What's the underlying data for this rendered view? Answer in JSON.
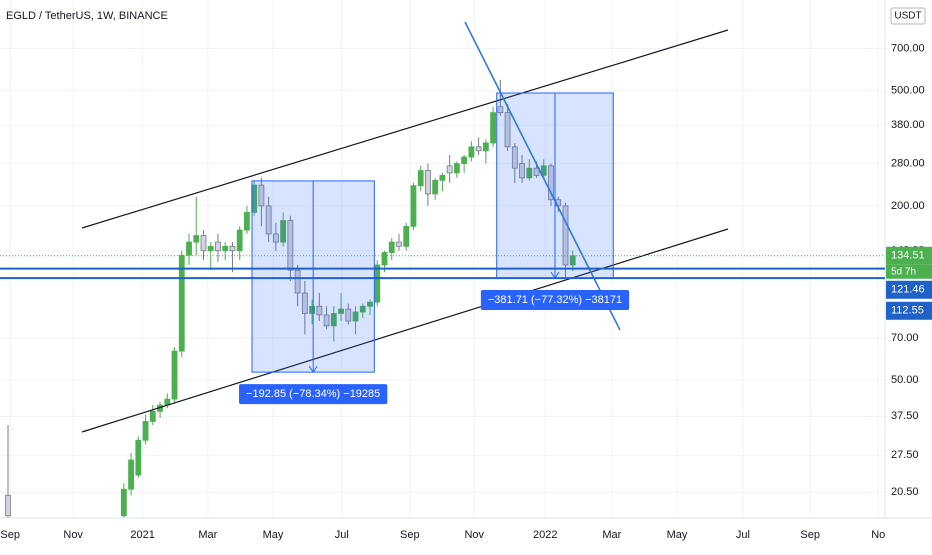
{
  "chart_data": {
    "type": "candlestick",
    "title": "EGLD / TetherUS, 1W, BINANCE",
    "y_axis_label": "USDT",
    "log_scale": true,
    "grid": true,
    "up_color": "#4caf50",
    "down_color": "#d1d4dc",
    "xlim": [
      -1.105,
      121.13
    ],
    "ylim": [
      16.7,
      1029
    ],
    "xticks": [
      {
        "value": 0.3,
        "label": "Sep"
      },
      {
        "value": 9.0,
        "label": "Nov"
      },
      {
        "value": 18.6,
        "label": "2021"
      },
      {
        "value": 27.6,
        "label": "Mar"
      },
      {
        "value": 36.6,
        "label": "May"
      },
      {
        "value": 46.1,
        "label": "Jul"
      },
      {
        "value": 55.5,
        "label": "Sep"
      },
      {
        "value": 64.4,
        "label": "Nov"
      },
      {
        "value": 74.2,
        "label": "2022"
      },
      {
        "value": 83.4,
        "label": "Mar"
      },
      {
        "value": 92.4,
        "label": "May"
      },
      {
        "value": 101.5,
        "label": "Jul"
      },
      {
        "value": 110.8,
        "label": "Sep"
      },
      {
        "value": 120.2,
        "label": "No"
      }
    ],
    "yticks": [
      {
        "value": 20.5,
        "label": "20.50"
      },
      {
        "value": 27.5,
        "label": "27.50"
      },
      {
        "value": 37.5,
        "label": "37.50"
      },
      {
        "value": 50,
        "label": "50.00"
      },
      {
        "value": 70,
        "label": "70.00"
      },
      {
        "value": 140,
        "label": "140.00"
      },
      {
        "value": 200,
        "label": "200.00"
      },
      {
        "value": 280,
        "label": "280.00"
      },
      {
        "value": 380,
        "label": "380.00"
      },
      {
        "value": 500,
        "label": "500.00"
      },
      {
        "value": 700,
        "label": "700.00"
      }
    ],
    "x": [
      0,
      16,
      17,
      18,
      19,
      20,
      21,
      22,
      23,
      24,
      25,
      26,
      27,
      28,
      29,
      30,
      31,
      32,
      33,
      34,
      35,
      36,
      37,
      38,
      39,
      40,
      41,
      42,
      43,
      44,
      45,
      46,
      47,
      48,
      49,
      50,
      51,
      52,
      53,
      54,
      55,
      56,
      57,
      58,
      59,
      60,
      61,
      62,
      63,
      64,
      65,
      66,
      67,
      68,
      69,
      70,
      71,
      72,
      73,
      74,
      75,
      76,
      77,
      78
    ],
    "open": [
      20,
      17,
      21,
      23.5,
      31,
      36,
      39,
      41,
      43,
      63,
      135,
      150,
      158,
      140,
      150,
      140,
      145,
      140,
      165,
      190,
      236,
      200,
      160,
      150,
      178,
      120,
      100,
      85,
      90,
      84,
      77,
      85,
      88,
      80,
      86,
      90,
      93,
      125,
      138,
      150,
      145,
      170,
      235,
      265,
      220,
      245,
      275,
      260,
      280,
      295,
      320,
      310,
      330,
      440,
      420,
      320,
      280,
      250,
      270,
      255,
      275,
      210,
      200,
      125
    ],
    "high": [
      35,
      22,
      28,
      32,
      38,
      41,
      42,
      45,
      65,
      140,
      160,
      215,
      165,
      150,
      160,
      150,
      150,
      170,
      200,
      245,
      250,
      215,
      175,
      190,
      185,
      125,
      110,
      95,
      100,
      90,
      90,
      100,
      92,
      90,
      92,
      95,
      130,
      140,
      155,
      160,
      175,
      240,
      275,
      280,
      250,
      260,
      300,
      285,
      300,
      335,
      345,
      340,
      440,
      545,
      450,
      330,
      300,
      290,
      285,
      290,
      280,
      215,
      205,
      140
    ],
    "low": [
      16.7,
      16.7,
      20,
      23,
      30,
      35,
      37,
      40,
      42,
      60,
      125,
      135,
      130,
      120,
      128,
      130,
      118,
      130,
      160,
      185,
      170,
      150,
      140,
      145,
      110,
      90,
      72,
      78,
      80,
      75,
      68,
      80,
      78,
      72,
      82,
      84,
      90,
      118,
      130,
      140,
      140,
      165,
      225,
      200,
      210,
      225,
      240,
      250,
      260,
      285,
      300,
      280,
      320,
      410,
      310,
      240,
      240,
      245,
      250,
      250,
      200,
      190,
      112,
      119
    ],
    "close": [
      17,
      21,
      26.5,
      31,
      36,
      39,
      41,
      43,
      63,
      135,
      150,
      158,
      140,
      145,
      140,
      145,
      140,
      165,
      190,
      236,
      200,
      160,
      150,
      178,
      120,
      100,
      85,
      90,
      84,
      77,
      85,
      88,
      80,
      86,
      90,
      93,
      125,
      138,
      150,
      145,
      170,
      235,
      265,
      220,
      245,
      255,
      260,
      280,
      295,
      320,
      310,
      330,
      420,
      420,
      320,
      270,
      250,
      270,
      255,
      275,
      210,
      200,
      125,
      134.51
    ],
    "hlines": [
      {
        "value": 134.51,
        "label": "134.51",
        "color": "#4caf50",
        "note": "5d 7h"
      },
      {
        "value": 121.46,
        "label": "121.46",
        "color": "#1e62c8"
      },
      {
        "value": 112.55,
        "label": "112.55",
        "color": "#1e62c8"
      }
    ],
    "measures": [
      {
        "x": [
          33.7,
          50.6
        ],
        "y": [
          244,
          53.3
        ],
        "label": "−192.85 (−78.34%) −19285"
      },
      {
        "x": [
          67.5,
          83.6
        ],
        "y": [
          491,
          112.7
        ],
        "label": "−381.71 (−77.32%) −38171"
      }
    ]
  }
}
